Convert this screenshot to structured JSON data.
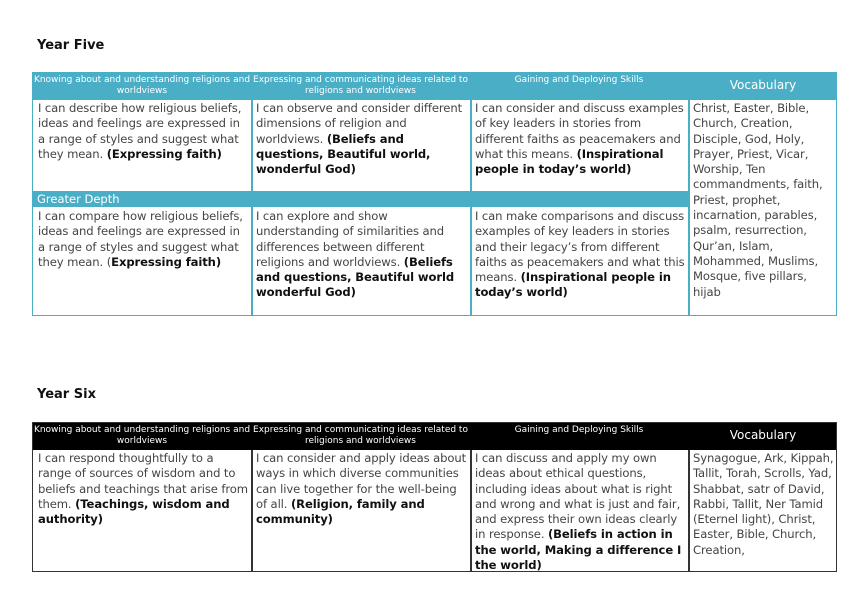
{
  "colors": {
    "year_five_accent": "#4aafc6",
    "year_six_accent": "#000000"
  },
  "year_five": {
    "title": "Year Five",
    "headers": [
      "Knowing about and understanding religions and worldviews",
      "Expressing and communicating ideas related to religions and worldviews",
      "Gaining and Deploying Skills",
      "Vocabulary"
    ],
    "row1": [
      [
        {
          "t": "I can describe how religious beliefs, ideas and feelings are expressed in a range of styles and suggest what they mean. "
        },
        {
          "b": "(Expressing faith)"
        }
      ],
      [
        {
          "t": "I can observe and consider different dimensions of religion and worldviews. "
        },
        {
          "b": "(Beliefs and questions, Beautiful world, wonderful God)"
        }
      ],
      [
        {
          "t": "I can consider and discuss examples of key leaders in stories from different faiths as peacemakers and what this means. "
        },
        {
          "b": "(Inspirational people in today’s world)"
        }
      ]
    ],
    "greater_depth_label": "Greater Depth",
    "row2": [
      [
        {
          "t": "I can compare how religious beliefs, ideas and feelings are expressed in a range of styles and suggest what they mean. ("
        },
        {
          "b": "Expressing faith)"
        }
      ],
      [
        {
          "t": "I can explore and show understanding of similarities and differences between different religions and worldviews. "
        },
        {
          "b": "(Beliefs and questions, Beautiful world wonderful God)"
        }
      ],
      [
        {
          "t": "I can make comparisons and discuss examples of key leaders in stories and their legacy’s from different faiths as peacemakers and what this means. "
        },
        {
          "b": "(Inspirational people in today’s world)"
        }
      ]
    ],
    "vocabulary": "Christ, Easter, Bible, Church, Creation, Disciple, God, Holy, Prayer, Priest, Vicar, Worship, Ten commandments, faith, Priest, prophet, incarnation, parables, psalm, resurrection, Qur’an, Islam, Mohammed, Muslims, Mosque, five pillars, hijab"
  },
  "year_six": {
    "title": "Year Six",
    "headers": [
      "Knowing about and understanding religions and worldviews",
      "Expressing and communicating ideas related to religions and worldviews",
      "Gaining and Deploying Skills",
      "Vocabulary"
    ],
    "row1": [
      [
        {
          "t": "I can respond thoughtfully to a range of sources of wisdom and to beliefs and teachings that arise from them. "
        },
        {
          "b": "(Teachings, wisdom and authority)"
        }
      ],
      [
        {
          "t": "I can consider and apply ideas about ways in which diverse communities can live together for the well-being of all. "
        },
        {
          "b": "(Religion, family and community)"
        }
      ],
      [
        {
          "t": "I can discuss and apply my own ideas about ethical questions, including ideas about what is right and wrong and what is just and fair, and express their own ideas clearly in response. "
        },
        {
          "b": "(Beliefs in action in the world, Making a difference I the world)"
        }
      ]
    ],
    "vocabulary": "Synagogue, Ark, Kippah, Tallit, Torah, Scrolls, Yad, Shabbat, satr of David, Rabbi, Tallit, Ner Tamid (Eternel light), Christ, Easter, Bible, Church, Creation,"
  }
}
